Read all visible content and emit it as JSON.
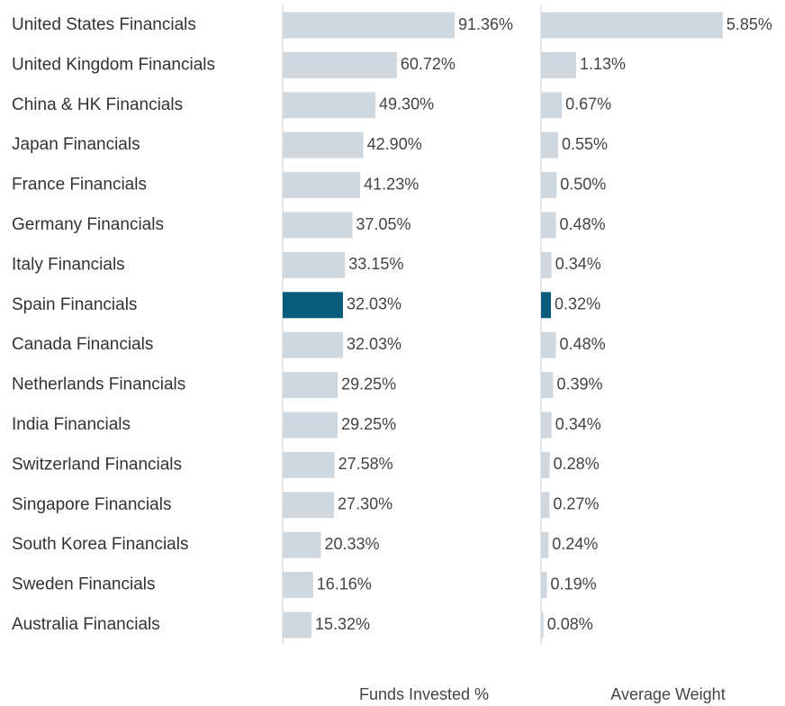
{
  "chart_data": {
    "type": "bar",
    "orientation": "horizontal",
    "categories": [
      "United States Financials",
      "United Kingdom Financials",
      "China & HK Financials",
      "Japan Financials",
      "France Financials",
      "Germany Financials",
      "Italy Financials",
      "Spain Financials",
      "Canada Financials",
      "Netherlands Financials",
      "India Financials",
      "Switzerland Financials",
      "Singapore Financials",
      "South Korea Financials",
      "Sweden Financials",
      "Australia Financials"
    ],
    "series": [
      {
        "name": "Funds Invested %",
        "xlim": [
          0,
          100
        ],
        "values": [
          91.36,
          60.72,
          49.3,
          42.9,
          41.23,
          37.05,
          33.15,
          32.03,
          32.03,
          29.25,
          29.25,
          27.58,
          27.3,
          20.33,
          16.16,
          15.32
        ],
        "value_labels": [
          "91.36%",
          "60.72%",
          "49.30%",
          "42.90%",
          "41.23%",
          "37.05%",
          "33.15%",
          "32.03%",
          "32.03%",
          "29.25%",
          "29.25%",
          "27.58%",
          "27.30%",
          "20.33%",
          "16.16%",
          "15.32%"
        ],
        "colors": [
          "#cfd8de",
          "#cfd8de",
          "#cfd8de",
          "#cfd8de",
          "#cfd8de",
          "#cfd8de",
          "#cfd8de",
          "#0a5c7c",
          "#cfd8de",
          "#cfd8de",
          "#cfd8de",
          "#cfd8de",
          "#cfd8de",
          "#cfd8de",
          "#cfd8de",
          "#cfd8de"
        ]
      },
      {
        "name": "Average Weight",
        "xlim": [
          0,
          6
        ],
        "values": [
          5.85,
          1.13,
          0.67,
          0.55,
          0.5,
          0.48,
          0.34,
          0.32,
          0.48,
          0.39,
          0.34,
          0.28,
          0.27,
          0.24,
          0.19,
          0.08
        ],
        "value_labels": [
          "5.85%",
          "1.13%",
          "0.67%",
          "0.55%",
          "0.50%",
          "0.48%",
          "0.34%",
          "0.32%",
          "0.48%",
          "0.39%",
          "0.34%",
          "0.28%",
          "0.27%",
          "0.24%",
          "0.19%",
          "0.08%"
        ],
        "colors": [
          "#cfd8de",
          "#cfd8de",
          "#cfd8de",
          "#cfd8de",
          "#cfd8de",
          "#cfd8de",
          "#cfd8de",
          "#0a5c7c",
          "#cfd8de",
          "#cfd8de",
          "#cfd8de",
          "#cfd8de",
          "#cfd8de",
          "#cfd8de",
          "#cfd8de",
          "#cfd8de"
        ]
      }
    ]
  }
}
